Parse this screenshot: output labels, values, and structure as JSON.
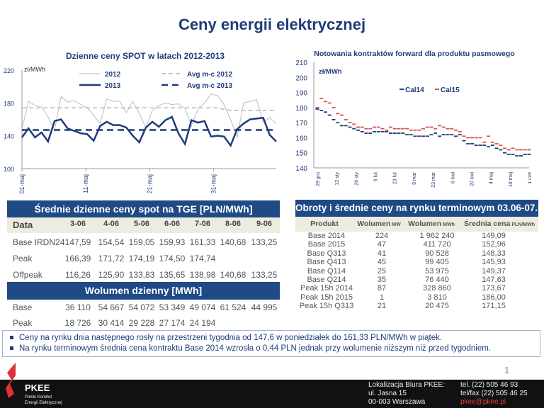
{
  "title": "Ceny energii elektrycznej",
  "chart_data": [
    {
      "type": "line",
      "title": "Dzienne ceny SPOT w latach 2012-2013",
      "ylabel": "zł/MWh",
      "ylim": [
        100,
        220
      ],
      "yticks": [
        "100",
        "140",
        "180",
        "220"
      ],
      "xticks": [
        "01-maj",
        "11-maj",
        "21-maj",
        "31-maj"
      ],
      "series": [
        {
          "name": "2012",
          "color": "#bbbbbb",
          "values": [
            148,
            182,
            177,
            175,
            163,
            147,
            188,
            181,
            183,
            178,
            174,
            165,
            155,
            185,
            182,
            182,
            168,
            182,
            167,
            150,
            171,
            177,
            180,
            178,
            179,
            173,
            152,
            173,
            180,
            191,
            189,
            178,
            160,
            138,
            180,
            182,
            184,
            157,
            162,
            155
          ]
        },
        {
          "name": "2013",
          "color": "#1f3c78",
          "values": [
            138,
            149,
            138,
            144,
            133,
            158,
            160,
            149,
            146,
            143,
            142,
            134,
            152,
            157,
            153,
            153,
            150,
            140,
            132,
            150,
            157,
            151,
            159,
            163,
            143,
            130,
            159,
            156,
            158,
            139,
            140,
            139,
            128,
            148,
            155,
            160,
            161,
            162,
            141,
            133
          ]
        },
        {
          "name": "Avg m-c 2012",
          "color": "#aaaaaa",
          "values": [
            174,
            174,
            174,
            174,
            174,
            174,
            174,
            174,
            174,
            174,
            174,
            174,
            174,
            174,
            174,
            174,
            174,
            174,
            174,
            174,
            174,
            174,
            174,
            174,
            174,
            174,
            174,
            174,
            174,
            174,
            174,
            172,
            171,
            171,
            171,
            171,
            171,
            171,
            171,
            171
          ]
        },
        {
          "name": "Avg m-c 2013",
          "color": "#1f3c78",
          "values": [
            147,
            147,
            147,
            147,
            147,
            147,
            147,
            147,
            147,
            147,
            147,
            147,
            147,
            147,
            147,
            147,
            147,
            147,
            147,
            147,
            147,
            147,
            147,
            147,
            147,
            147,
            147,
            147,
            147,
            147,
            147,
            147,
            147,
            147,
            147,
            147,
            147,
            147,
            147,
            147
          ]
        }
      ]
    },
    {
      "type": "line",
      "title": "Notowania kontraktów forward dla produktu pasmowego",
      "ylabel": "zł/MWh",
      "ylim": [
        140,
        210
      ],
      "yticks": [
        "140",
        "150",
        "160",
        "170",
        "180",
        "190",
        "200",
        "210"
      ],
      "xticks": [
        "29 gru",
        "12 sty",
        "26 sty",
        "9 lut",
        "23 lut",
        "9 mar",
        "23 mar",
        "6 kwi",
        "20 kwi",
        "4 maj",
        "18 maj",
        "1 cze"
      ],
      "series": [
        {
          "name": "Cal14",
          "color": "#1f3c78",
          "values": [
            179,
            178,
            177,
            175,
            172,
            170,
            168,
            168,
            167,
            166,
            165,
            164,
            163,
            163,
            164,
            164,
            164,
            164,
            163,
            163,
            163,
            163,
            162,
            162,
            161,
            161,
            161,
            161,
            162,
            163,
            161,
            162,
            162,
            162,
            161,
            162,
            158,
            156,
            156,
            155,
            155,
            155,
            154,
            155,
            153,
            152,
            150,
            149,
            149,
            148,
            148,
            149,
            149
          ]
        },
        {
          "name": "Cal15",
          "color": "#d9534f",
          "values": [
            180,
            186,
            184,
            183,
            180,
            176,
            175,
            172,
            170,
            169,
            167,
            167,
            166,
            166,
            167,
            167,
            166,
            165,
            167,
            166,
            166,
            166,
            166,
            165,
            165,
            165,
            166,
            167,
            167,
            166,
            168,
            167,
            166,
            166,
            165,
            164,
            161,
            160,
            160,
            160,
            160,
            157,
            161,
            157,
            156,
            155,
            153,
            152,
            153,
            152,
            152,
            152,
            152
          ]
        }
      ]
    }
  ],
  "spot_table": {
    "title": "Średnie dzienne ceny spot na TGE [PLN/MWh]",
    "header": [
      "Data",
      "3-06",
      "4-06",
      "5-06",
      "6-06",
      "7-06",
      "8-06",
      "9-06"
    ],
    "rows": [
      [
        "Base IRDN24",
        "147,59",
        "154,54",
        "159,05",
        "159,93",
        "161,33",
        "140,68",
        "133,25"
      ],
      [
        "Peak",
        "166,39",
        "171,72",
        "174,19",
        "174,50",
        "174,74",
        "",
        ""
      ],
      [
        "Offpeak",
        "116,26",
        "125,90",
        "133,83",
        "135,65",
        "138,98",
        "140,68",
        "133,25"
      ]
    ],
    "volume_title": "Wolumen dzienny [MWh]",
    "volume_rows": [
      [
        "Base",
        "36 110",
        "54 667",
        "54 072",
        "53 349",
        "49 074",
        "61 524",
        "44 995"
      ],
      [
        "Peak",
        "18 726",
        "30 414",
        "29 228",
        "27 174",
        "24 194",
        "",
        ""
      ]
    ]
  },
  "forward_table": {
    "title": "Obroty i średnie ceny na rynku terminowym 03.06-07.06",
    "header": [
      {
        "main": "Produkt",
        "unit": ""
      },
      {
        "main": "Wolumen",
        "unit": "MW"
      },
      {
        "main": "Wolumen",
        "unit": "MWh"
      },
      {
        "main": "Średnia cena",
        "unit": "PLN/MWh"
      }
    ],
    "rows": [
      [
        "Base 2014",
        "224",
        "1 962 240",
        "149,09"
      ],
      [
        "Base 2015",
        "47",
        "411 720",
        "152,96"
      ],
      [
        "Base Q313",
        "41",
        "90 528",
        "148,33"
      ],
      [
        "Base Q413",
        "45",
        "99 405",
        "145,93"
      ],
      [
        "Base Q114",
        "25",
        "53 975",
        "149,37"
      ],
      [
        "Base Q214",
        "35",
        "76 440",
        "147,63"
      ],
      [
        "Peak 15h 2014",
        "87",
        "328 860",
        "173,67"
      ],
      [
        "Peak 15h 2015",
        "1",
        "3 810",
        "186,00"
      ],
      [
        "Peak 15h Q313",
        "21",
        "20 475",
        "171,15"
      ]
    ]
  },
  "bullets": [
    "Ceny na rynku dnia następnego rosły na przestrzeni tygodnia od 147,6 w poniedziałek do 161,33 PLN/MWh w piątek.",
    "Na rynku terminowym średnia cena kontraktu Base 2014 wzrosła o 0,44 PLN jednak przy wolumenie niższym niż przed tygodniem."
  ],
  "page_number": "1",
  "footer": {
    "logo": "PKEE",
    "logo_sub1": "Polski Komitet",
    "logo_sub2": "Energii Elektrycznej",
    "address": [
      "Lokalizacja Biura PKEE:",
      "ul. Jasna 15",
      "00-003 Warszawa"
    ],
    "phone": "tel. (22) 505 46 93",
    "fax": "tel/fax (22) 505 46 25",
    "email": "pkee@pkee.pl"
  }
}
